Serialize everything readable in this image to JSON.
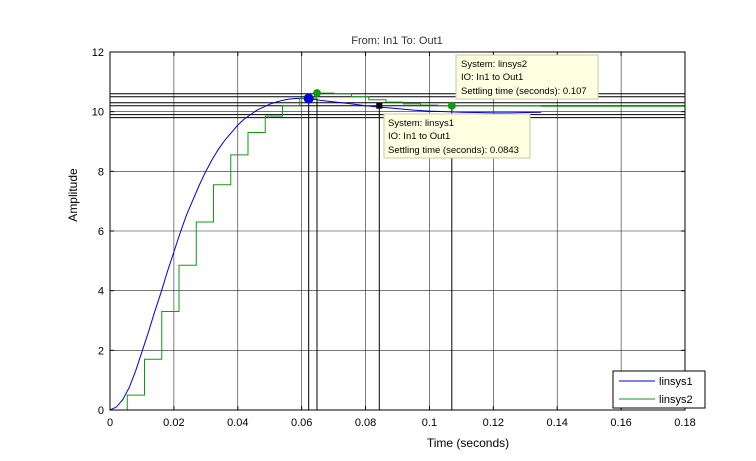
{
  "colors": {
    "background": "#ffffff",
    "plot_background": "#ffffff",
    "grid": "#262626",
    "marker_line": "#000000",
    "tooltip_fill": "#ffffe1",
    "tooltip_border": "#c8c8a0"
  },
  "chart_data": {
    "type": "line",
    "title": "From: In1  To: Out1",
    "xlabel": "Time (seconds)",
    "ylabel": "Amplitude",
    "xlim": [
      0,
      0.18
    ],
    "ylim": [
      0,
      12
    ],
    "xticks": [
      0,
      0.02,
      0.04,
      0.06,
      0.08,
      0.1,
      0.12,
      0.14,
      0.16,
      0.18
    ],
    "xtick_labels": [
      "0",
      "0.02",
      "0.04",
      "0.06",
      "0.08",
      "0.1",
      "0.12",
      "0.14",
      "0.16",
      "0.18"
    ],
    "yticks": [
      0,
      2,
      4,
      6,
      8,
      10,
      12
    ],
    "ytick_labels": [
      "0",
      "2",
      "4",
      "6",
      "8",
      "10",
      "12"
    ],
    "grid": true,
    "legend_position": "bottom-right",
    "series": [
      {
        "name": "linsys1",
        "color": "#0000cc",
        "style": "continuous",
        "x": [
          0,
          0.002,
          0.004,
          0.006,
          0.008,
          0.01,
          0.012,
          0.014,
          0.016,
          0.018,
          0.02,
          0.022,
          0.024,
          0.026,
          0.028,
          0.03,
          0.032,
          0.034,
          0.036,
          0.038,
          0.04,
          0.042,
          0.044,
          0.046,
          0.048,
          0.05,
          0.052,
          0.054,
          0.056,
          0.058,
          0.06,
          0.062,
          0.064,
          0.066,
          0.07,
          0.075,
          0.08,
          0.085,
          0.09,
          0.095,
          0.1,
          0.105,
          0.11,
          0.115,
          0.12,
          0.125,
          0.13,
          0.135
        ],
        "y": [
          0,
          0.1,
          0.35,
          0.75,
          1.3,
          1.95,
          2.6,
          3.3,
          3.95,
          4.65,
          5.3,
          5.95,
          6.55,
          7.05,
          7.55,
          8.0,
          8.4,
          8.75,
          9.05,
          9.3,
          9.55,
          9.75,
          9.9,
          10.05,
          10.15,
          10.25,
          10.32,
          10.38,
          10.42,
          10.44,
          10.44,
          10.43,
          10.41,
          10.38,
          10.33,
          10.27,
          10.2,
          10.15,
          10.1,
          10.05,
          10.02,
          10.0,
          9.98,
          9.97,
          9.96,
          9.96,
          9.97,
          9.98
        ]
      },
      {
        "name": "linsys2",
        "color": "#119911",
        "style": "stairs",
        "x": [
          0,
          0.0054,
          0.0108,
          0.0162,
          0.0216,
          0.027,
          0.0324,
          0.0378,
          0.0432,
          0.0486,
          0.054,
          0.0594,
          0.0648,
          0.0702,
          0.0756,
          0.081,
          0.0864,
          0.0918,
          0.0972,
          0.1026,
          0.108,
          0.1134,
          0.1188,
          0.1242,
          0.1296,
          0.135,
          0.1404,
          0.18
        ],
        "y": [
          0,
          0.5,
          1.7,
          3.3,
          4.85,
          6.3,
          7.55,
          8.55,
          9.3,
          9.85,
          10.2,
          10.45,
          10.62,
          10.6,
          10.5,
          10.4,
          10.32,
          10.26,
          10.22,
          10.2,
          10.2,
          10.2,
          10.2,
          10.19,
          10.19,
          10.18,
          10.18,
          10.18
        ]
      }
    ],
    "reference_lines_y": [
      9.8,
      9.9,
      10.2,
      10.3,
      10.5,
      10.6
    ],
    "peak_markers": [
      {
        "series": "linsys1",
        "x": 0.0622,
        "y": 10.44,
        "color": "#0000dd"
      },
      {
        "series": "linsys2",
        "x": 0.0648,
        "y": 10.62,
        "color": "#119911"
      }
    ],
    "settling_markers": [
      {
        "series": "linsys1",
        "x": 0.0843,
        "y": 10.2,
        "color": "#000000",
        "shape": "square"
      },
      {
        "series": "linsys2",
        "x": 0.107,
        "y": 10.2,
        "color": "#119911",
        "shape": "circle"
      }
    ],
    "datatips": [
      {
        "system": "System: linsys2",
        "io": "IO: In1 to Out1",
        "settling": "Settling time (seconds): 0.107"
      },
      {
        "system": "System: linsys1",
        "io": "IO: In1 to Out1",
        "settling": "Settling time (seconds): 0.0843"
      }
    ]
  }
}
